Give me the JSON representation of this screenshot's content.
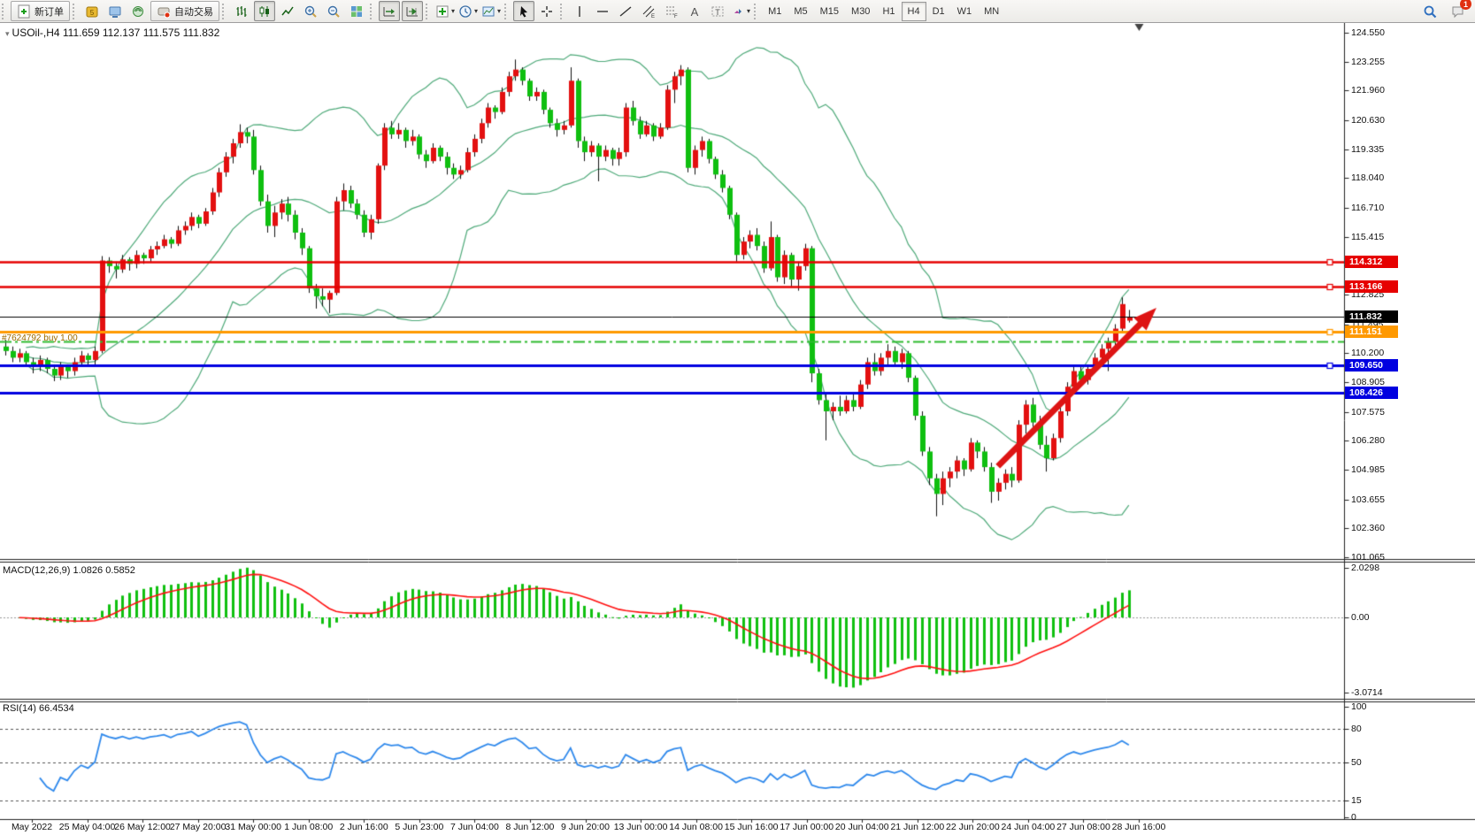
{
  "toolbar": {
    "new_order_label": "新订单",
    "autotrading_label": "自动交易",
    "timeframes": [
      "M1",
      "M5",
      "M15",
      "M30",
      "H1",
      "H4",
      "D1",
      "W1",
      "MN"
    ],
    "active_timeframe": "H4",
    "notification_count": "1",
    "left_icons": [
      "new-order-icon",
      "mql5-icon",
      "virtual-hosting-icon",
      "signals-icon",
      "autotrading-icon"
    ],
    "chart_icons": [
      "bar-chart-icon",
      "candlestick-chart-icon",
      "line-chart-icon",
      "zoom-in-icon",
      "zoom-out-icon",
      "tile-windows-icon",
      "autoscroll-icon",
      "chart-shift-icon",
      "indicators-icon",
      "periods-icon",
      "templates-icon"
    ],
    "draw_icons": [
      "cursor-icon",
      "crosshair-icon",
      "vertical-line-icon",
      "horizontal-line-icon",
      "trendline-icon",
      "channel-icon",
      "fibonacci-icon",
      "text-icon",
      "text-label-icon",
      "arrows-icon"
    ],
    "right_icons": [
      "search-icon",
      "alerts-icon"
    ]
  },
  "chart": {
    "title": {
      "symbol": "USOil-,H4",
      "open": "111.659",
      "high": "112.137",
      "low": "111.575",
      "close": "111.832"
    },
    "order_line_label": "#7624792 buy 1.00",
    "price_axis_ticks": [
      "124.550",
      "123.255",
      "121.960",
      "120.630",
      "119.335",
      "118.040",
      "116.710",
      "115.415",
      "114.120",
      "112.825",
      "111.495",
      "110.200",
      "108.905",
      "107.575",
      "106.280",
      "104.985",
      "103.655",
      "102.360",
      "101.065"
    ],
    "scale": {
      "top_price": 124.55,
      "bottom_price": 101.065
    },
    "levels": [
      {
        "name": "resistance-line-1",
        "price": 114.312,
        "label": "114.312",
        "color": "#e60000",
        "style": "solid",
        "width": 2.5,
        "badge": true,
        "handle": true
      },
      {
        "name": "resistance-line-2",
        "price": 113.166,
        "label": "113.166",
        "color": "#e60000",
        "style": "solid",
        "width": 2.5,
        "badge": true,
        "handle": true
      },
      {
        "name": "bid-line",
        "price": 111.832,
        "label": "111.832",
        "color": "#000000",
        "style": "solid",
        "width": 1,
        "badge": true,
        "handle": false
      },
      {
        "name": "position-open-line",
        "price": 111.151,
        "label": "111.151",
        "color": "#ff9900",
        "style": "solid",
        "width": 3,
        "badge": true,
        "handle": true
      },
      {
        "name": "ask-dashdot-line",
        "price": 110.73,
        "label": "",
        "color": "#2ebb2e",
        "style": "dashdot",
        "width": 2,
        "badge": false,
        "handle": false
      },
      {
        "name": "support-line-1",
        "price": 109.65,
        "label": "109.650",
        "color": "#0000e0",
        "style": "solid",
        "width": 3,
        "badge": true,
        "handle": true
      },
      {
        "name": "support-line-2",
        "price": 108.426,
        "label": "108.426",
        "color": "#0000e0",
        "style": "solid",
        "width": 3,
        "badge": true,
        "handle": false
      }
    ],
    "candle_up_color": "#e31010",
    "candle_down_color": "#0fbf10",
    "bollinger": {
      "period": 20,
      "deviation": 2,
      "color": "#4faa7a"
    },
    "trend_arrow": {
      "from_bar": 144,
      "from_price": 105.14,
      "to_bar": 167,
      "to_price": 112.23,
      "color": "#dd1414"
    },
    "shift_marker_bar": 164.5,
    "candles": [
      [
        110.5,
        110.8,
        110.1,
        110.3
      ],
      [
        110.3,
        110.5,
        109.8,
        110.0
      ],
      [
        110.0,
        110.4,
        109.8,
        110.2
      ],
      [
        110.2,
        110.3,
        109.6,
        109.8
      ],
      [
        109.8,
        110.0,
        109.3,
        109.6
      ],
      [
        109.6,
        110.1,
        109.4,
        109.9
      ],
      [
        109.9,
        110.0,
        109.3,
        109.5
      ],
      [
        109.5,
        109.7,
        108.95,
        109.2
      ],
      [
        109.2,
        109.8,
        109.0,
        109.6
      ],
      [
        109.6,
        109.7,
        109.1,
        109.4
      ],
      [
        109.4,
        110.0,
        109.2,
        109.8
      ],
      [
        109.8,
        110.3,
        109.6,
        110.1
      ],
      [
        110.1,
        110.2,
        109.6,
        109.9
      ],
      [
        109.9,
        110.5,
        109.7,
        110.3
      ],
      [
        110.3,
        114.55,
        110.2,
        114.35
      ],
      [
        114.35,
        114.5,
        113.8,
        114.1
      ],
      [
        114.1,
        114.3,
        113.55,
        113.95
      ],
      [
        113.95,
        114.6,
        113.8,
        114.4
      ],
      [
        114.4,
        114.5,
        113.9,
        114.2
      ],
      [
        114.2,
        114.8,
        114.0,
        114.6
      ],
      [
        114.6,
        114.7,
        114.2,
        114.45
      ],
      [
        114.45,
        115.0,
        114.3,
        114.85
      ],
      [
        114.85,
        115.2,
        114.6,
        115.0
      ],
      [
        115.0,
        115.5,
        114.9,
        115.3
      ],
      [
        115.3,
        115.4,
        114.9,
        115.1
      ],
      [
        115.1,
        115.9,
        115.0,
        115.7
      ],
      [
        115.7,
        116.1,
        115.5,
        115.9
      ],
      [
        115.9,
        116.5,
        115.7,
        116.3
      ],
      [
        116.3,
        116.4,
        115.8,
        116.0
      ],
      [
        116.0,
        116.7,
        115.9,
        116.55
      ],
      [
        116.55,
        117.6,
        116.4,
        117.4
      ],
      [
        117.4,
        118.5,
        117.2,
        118.3
      ],
      [
        118.3,
        119.2,
        118.1,
        119.0
      ],
      [
        119.0,
        119.8,
        118.7,
        119.6
      ],
      [
        119.6,
        120.45,
        119.4,
        120.1
      ],
      [
        120.1,
        120.3,
        119.6,
        119.9
      ],
      [
        119.9,
        120.2,
        118.2,
        118.4
      ],
      [
        118.4,
        118.6,
        116.8,
        117.0
      ],
      [
        117.0,
        117.3,
        115.6,
        115.9
      ],
      [
        115.9,
        116.8,
        115.4,
        116.5
      ],
      [
        116.5,
        117.1,
        116.2,
        116.9
      ],
      [
        116.9,
        117.2,
        116.1,
        116.4
      ],
      [
        116.4,
        116.6,
        115.3,
        115.6
      ],
      [
        115.6,
        115.8,
        114.6,
        114.9
      ],
      [
        114.9,
        115.0,
        112.9,
        113.1
      ],
      [
        113.1,
        113.3,
        112.2,
        112.75
      ],
      [
        112.75,
        113.1,
        112.3,
        112.6
      ],
      [
        112.6,
        113.0,
        112.0,
        112.9
      ],
      [
        112.9,
        117.2,
        112.8,
        117.0
      ],
      [
        117.0,
        117.8,
        116.6,
        117.5
      ],
      [
        117.5,
        117.7,
        116.7,
        116.9
      ],
      [
        116.9,
        117.1,
        116.2,
        116.4
      ],
      [
        116.4,
        116.6,
        115.4,
        115.6
      ],
      [
        115.6,
        116.4,
        115.3,
        116.2
      ],
      [
        116.2,
        118.7,
        116.0,
        118.6
      ],
      [
        118.6,
        120.5,
        118.4,
        120.3
      ],
      [
        120.3,
        120.6,
        119.8,
        120.0
      ],
      [
        120.0,
        120.5,
        119.8,
        120.2
      ],
      [
        120.2,
        120.3,
        119.4,
        119.7
      ],
      [
        119.7,
        120.2,
        119.5,
        119.9
      ],
      [
        119.9,
        120.0,
        118.9,
        119.1
      ],
      [
        119.1,
        119.3,
        118.5,
        118.8
      ],
      [
        118.8,
        119.6,
        118.7,
        119.4
      ],
      [
        119.4,
        119.5,
        118.8,
        119.0
      ],
      [
        119.0,
        119.2,
        118.2,
        118.5
      ],
      [
        118.5,
        118.7,
        118.0,
        118.2
      ],
      [
        118.2,
        118.6,
        118.0,
        118.4
      ],
      [
        118.4,
        119.4,
        118.3,
        119.2
      ],
      [
        119.2,
        120.0,
        119.0,
        119.8
      ],
      [
        119.8,
        120.7,
        119.6,
        120.5
      ],
      [
        120.5,
        121.4,
        120.3,
        121.2
      ],
      [
        121.2,
        121.3,
        120.7,
        121.0
      ],
      [
        121.0,
        122.1,
        120.9,
        121.9
      ],
      [
        121.9,
        122.8,
        121.7,
        122.6
      ],
      [
        122.6,
        123.35,
        122.4,
        122.9
      ],
      [
        122.9,
        123.0,
        122.2,
        122.4
      ],
      [
        122.4,
        122.5,
        121.5,
        121.7
      ],
      [
        121.7,
        122.1,
        121.5,
        121.9
      ],
      [
        121.9,
        122.0,
        120.9,
        121.1
      ],
      [
        121.1,
        121.2,
        120.3,
        120.5
      ],
      [
        120.5,
        120.7,
        119.9,
        120.2
      ],
      [
        120.2,
        120.6,
        120.0,
        120.4
      ],
      [
        120.4,
        123.0,
        120.3,
        122.4
      ],
      [
        122.4,
        122.5,
        119.4,
        119.7
      ],
      [
        119.7,
        119.9,
        118.8,
        119.2
      ],
      [
        119.2,
        119.7,
        119.0,
        119.5
      ],
      [
        119.5,
        119.6,
        117.9,
        119.0
      ],
      [
        119.0,
        119.5,
        118.8,
        119.3
      ],
      [
        119.3,
        119.4,
        118.6,
        118.9
      ],
      [
        118.9,
        119.4,
        118.6,
        119.2
      ],
      [
        119.2,
        121.4,
        119.0,
        121.2
      ],
      [
        121.2,
        121.5,
        120.4,
        120.6
      ],
      [
        120.6,
        120.8,
        119.8,
        120.0
      ],
      [
        120.0,
        120.6,
        119.9,
        120.4
      ],
      [
        120.4,
        120.5,
        119.7,
        119.9
      ],
      [
        119.9,
        120.5,
        119.8,
        120.3
      ],
      [
        120.3,
        122.2,
        120.2,
        122.0
      ],
      [
        122.0,
        122.8,
        121.4,
        122.6
      ],
      [
        122.6,
        123.1,
        122.2,
        122.9
      ],
      [
        122.9,
        123.0,
        118.3,
        118.5
      ],
      [
        118.5,
        119.5,
        118.2,
        119.3
      ],
      [
        119.3,
        119.9,
        119.0,
        119.7
      ],
      [
        119.7,
        119.8,
        118.7,
        118.9
      ],
      [
        118.9,
        119.0,
        118.0,
        118.2
      ],
      [
        118.2,
        118.4,
        117.4,
        117.6
      ],
      [
        117.6,
        117.7,
        116.2,
        116.4
      ],
      [
        116.4,
        116.5,
        114.3,
        114.6
      ],
      [
        114.6,
        115.4,
        114.4,
        115.2
      ],
      [
        115.2,
        115.7,
        114.9,
        115.5
      ],
      [
        115.5,
        115.8,
        114.8,
        115.0
      ],
      [
        115.0,
        115.2,
        113.8,
        114.0
      ],
      [
        114.0,
        116.1,
        113.9,
        115.4
      ],
      [
        115.4,
        115.5,
        113.4,
        113.6
      ],
      [
        113.6,
        114.8,
        113.3,
        114.6
      ],
      [
        114.6,
        114.7,
        113.2,
        113.5
      ],
      [
        113.5,
        114.3,
        113.0,
        114.1
      ],
      [
        114.1,
        115.1,
        113.9,
        114.9
      ],
      [
        114.9,
        115.0,
        108.9,
        109.3
      ],
      [
        109.3,
        109.5,
        107.9,
        108.1
      ],
      [
        108.1,
        108.4,
        106.3,
        107.6
      ],
      [
        107.6,
        108.0,
        107.2,
        107.8
      ],
      [
        107.8,
        108.3,
        107.4,
        107.6
      ],
      [
        107.6,
        108.3,
        107.5,
        108.1
      ],
      [
        108.1,
        108.4,
        107.6,
        107.8
      ],
      [
        107.8,
        109.0,
        107.7,
        108.8
      ],
      [
        108.8,
        110.0,
        108.6,
        109.8
      ],
      [
        109.8,
        110.2,
        109.2,
        109.4
      ],
      [
        109.4,
        110.2,
        109.2,
        110.0
      ],
      [
        110.0,
        110.6,
        109.7,
        110.3
      ],
      [
        110.3,
        110.5,
        109.6,
        109.8
      ],
      [
        109.8,
        110.4,
        109.5,
        110.2
      ],
      [
        110.2,
        110.3,
        108.9,
        109.1
      ],
      [
        109.1,
        109.2,
        107.2,
        107.4
      ],
      [
        107.4,
        107.6,
        105.6,
        105.8
      ],
      [
        105.8,
        106.0,
        104.3,
        104.6
      ],
      [
        104.6,
        104.8,
        102.9,
        103.9
      ],
      [
        103.9,
        104.9,
        103.4,
        104.6
      ],
      [
        104.6,
        105.1,
        104.2,
        104.9
      ],
      [
        104.9,
        105.6,
        104.6,
        105.4
      ],
      [
        105.4,
        105.5,
        104.7,
        105.0
      ],
      [
        105.0,
        106.4,
        104.9,
        106.2
      ],
      [
        106.2,
        106.3,
        105.5,
        105.8
      ],
      [
        105.8,
        106.0,
        104.9,
        105.1
      ],
      [
        105.1,
        105.3,
        103.5,
        104.0
      ],
      [
        104.0,
        104.6,
        103.6,
        104.4
      ],
      [
        104.4,
        105.0,
        104.1,
        104.8
      ],
      [
        104.8,
        105.1,
        104.2,
        104.5
      ],
      [
        104.5,
        107.2,
        104.4,
        107.0
      ],
      [
        107.0,
        108.1,
        106.6,
        107.9
      ],
      [
        107.9,
        108.2,
        106.9,
        107.1
      ],
      [
        107.1,
        107.4,
        105.9,
        106.1
      ],
      [
        106.1,
        106.5,
        104.9,
        105.5
      ],
      [
        105.5,
        106.6,
        105.4,
        106.4
      ],
      [
        106.4,
        107.8,
        106.2,
        107.6
      ],
      [
        107.6,
        108.9,
        107.4,
        108.7
      ],
      [
        108.7,
        109.6,
        108.4,
        109.4
      ],
      [
        109.4,
        109.6,
        108.8,
        109.0
      ],
      [
        109.0,
        109.7,
        108.8,
        109.5
      ],
      [
        109.5,
        110.2,
        109.3,
        110.0
      ],
      [
        110.0,
        110.6,
        109.8,
        110.4
      ],
      [
        110.4,
        110.9,
        109.4,
        110.7
      ],
      [
        110.7,
        111.5,
        110.5,
        111.3
      ],
      [
        111.3,
        112.7,
        111.1,
        112.4
      ],
      [
        111.659,
        112.137,
        111.575,
        111.832
      ]
    ]
  },
  "macd": {
    "label": "MACD(12,26,9)",
    "value_main": "1.0826",
    "value_signal": "0.5852",
    "fast": 12,
    "slow": 26,
    "signal": 9,
    "axis_labels": [
      "2.0298",
      "0.00",
      "-3.0714"
    ],
    "axis_values": [
      2.0298,
      0,
      -3.0714
    ],
    "histogram_color": "#10c010",
    "signal_color": "#ff1010"
  },
  "rsi": {
    "label": "RSI(14)",
    "value": "66.4534",
    "period": 14,
    "axis_labels": [
      "100",
      "80",
      "50",
      "15",
      "0"
    ],
    "axis_values": [
      100,
      80,
      50,
      15,
      0
    ],
    "level_lines": [
      80,
      50,
      15
    ],
    "line_color": "#2f89ec"
  },
  "time_axis": {
    "labels": [
      "May 2022",
      "25 May 04:00",
      "26 May 12:00",
      "27 May 20:00",
      "31 May 00:00",
      "1 Jun 08:00",
      "2 Jun 16:00",
      "5 Jun 23:00",
      "7 Jun 04:00",
      "8 Jun 12:00",
      "9 Jun 20:00",
      "13 Jun 00:00",
      "14 Jun 08:00",
      "15 Jun 16:00",
      "17 Jun 00:00",
      "20 Jun 04:00",
      "21 Jun 12:00",
      "22 Jun 20:00",
      "24 Jun 04:00",
      "27 Jun 08:00",
      "28 Jun 16:00"
    ]
  }
}
